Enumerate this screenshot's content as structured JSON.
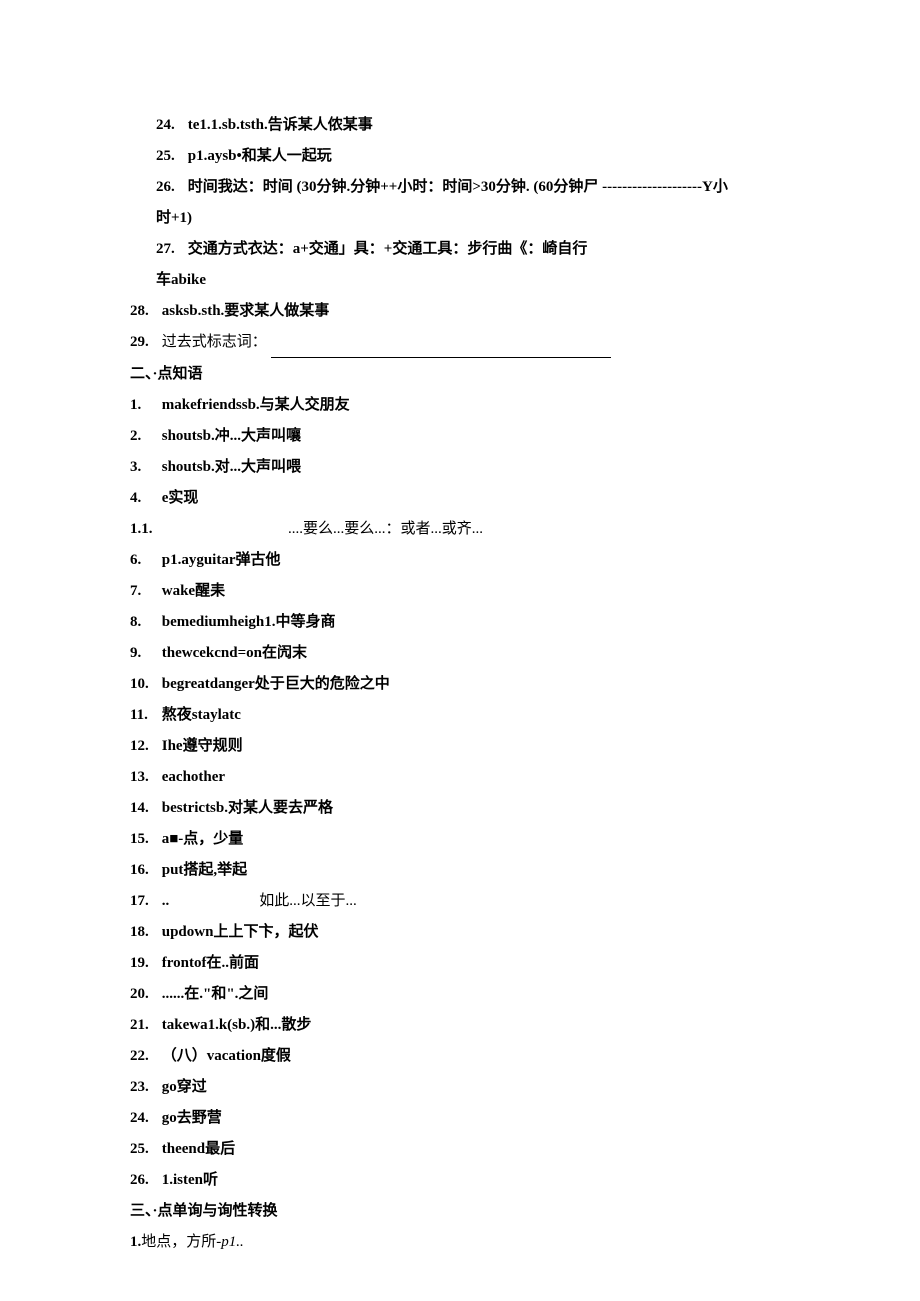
{
  "block1": {
    "items": [
      {
        "num": "24.",
        "text": "te1.1.sb.tsth.告诉某人侬某事"
      },
      {
        "num": "25.",
        "text": "p1.aysb•和某人一起玩"
      },
      {
        "num": "26.",
        "text": "时间我达：时间 (30分钟.分钟++小时：时间>30分钟. (60分钟尸 --------------------Y小"
      },
      {
        "num": "",
        "text": "时+1)"
      },
      {
        "num": "27.",
        "text": "交通方式衣达：a+交通」具：+交通工具：步行曲《：崎自行"
      },
      {
        "num": "",
        "text": "车abike"
      }
    ]
  },
  "block2": {
    "items": [
      {
        "num": "28.",
        "text": "asksb.sth.要求某人做某事"
      },
      {
        "num": "29.",
        "prefix": "过去式标志词：",
        "hasBlank": true
      }
    ]
  },
  "section2": {
    "header": "二、·点知语",
    "items": [
      {
        "num": "1.",
        "text": "makefriendssb.与某人交朋友"
      },
      {
        "num": "2.",
        "text": "shoutsb.冲...大声叫嚷"
      },
      {
        "num": "3.",
        "text": "shoutsb.对...大声叫喂"
      },
      {
        "num": "4.",
        "text": "e实现"
      },
      {
        "num": "1.1.",
        "text": "....要么...要么...：或者...或齐...",
        "pad": true
      },
      {
        "num": "6.",
        "text": "p1.ayguitar弹古他"
      },
      {
        "num": "7.",
        "text": "wake醒耒"
      },
      {
        "num": "8.",
        "text": "bemediumheigh1.中等身商"
      },
      {
        "num": "9.",
        "text": "thewcekcnd=on在闶末"
      },
      {
        "num": "10.",
        "text": "begreatdanger处于巨大的危险之中"
      },
      {
        "num": "11.",
        "text": "熬夜staylatc"
      },
      {
        "num": "12.",
        "text": "Ihe遵守规则"
      },
      {
        "num": "13.",
        "text": "eachother"
      },
      {
        "num": "14.",
        "text": "bestrictsb.对某人要去严格"
      },
      {
        "num": "15.",
        "text": "a■-点，少量"
      },
      {
        "num": "16.",
        "text": "put搭起,举起"
      },
      {
        "num": "17.",
        "text": "..",
        "suffix": "如此...以至于...",
        "pad": true
      },
      {
        "num": "18.",
        "text": "updown上上下卞，起伏"
      },
      {
        "num": "19.",
        "text": "frontof在..前面"
      },
      {
        "num": "20.",
        "text": "......在.\"和\".之间"
      },
      {
        "num": "21.",
        "text": "takewa1.k(sb.)和...散步"
      },
      {
        "num": "22.",
        "text": "（八）vacation度假"
      },
      {
        "num": "23.",
        "text": "go穿过"
      },
      {
        "num": "24.",
        "text": "go去野营"
      },
      {
        "num": "25.",
        "text": "theend最后"
      },
      {
        "num": "26.",
        "text": "1.isten听"
      }
    ]
  },
  "section3": {
    "header": "三、·点单询与询性转换",
    "items": [
      {
        "num": "1.",
        "prefix": "地点，方所-",
        "italic": "p1.."
      }
    ]
  }
}
